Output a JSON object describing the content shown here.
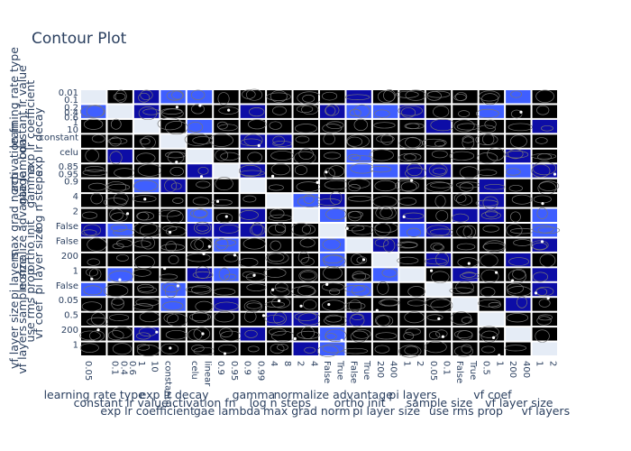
{
  "chart_data": {
    "type": "contour",
    "title": "Contour Plot",
    "subtitle": "",
    "parameters": [
      "learning rate type",
      "constant lr value",
      "exp lr coefficient",
      "exp lr decay",
      "activation fn",
      "gae lambda",
      "gamma",
      "log n steps",
      "max grad norm",
      "normalize advantage",
      "ortho init",
      "pi layer size",
      "pi layers",
      "sample size",
      "use rms prop",
      "vf coef",
      "vf layer size",
      "vf layers"
    ],
    "x_tick_labels": [
      [
        "0.05"
      ],
      [
        "0.1",
        "0.4",
        "0.6"
      ],
      [
        "1",
        "10"
      ],
      [
        "constant"
      ],
      [
        "celu",
        "linear"
      ],
      [
        "0.9",
        "0.95"
      ],
      [
        "0.9",
        "0.99"
      ],
      [
        "4",
        "8"
      ],
      [
        "2",
        "4"
      ],
      [
        "False",
        "True"
      ],
      [
        "False",
        "True"
      ],
      [
        "200",
        "400"
      ],
      [
        "1",
        "2"
      ],
      [
        "0.05",
        "0.1"
      ],
      [
        "False",
        "True"
      ],
      [
        "0.5",
        "1"
      ],
      [
        "200",
        "400"
      ],
      [
        "1",
        "2"
      ]
    ],
    "y_tick_labels": [
      [
        "0.01",
        "0.1"
      ],
      [
        "0.2",
        "0.4",
        "0.6"
      ],
      [
        "1",
        "10"
      ],
      [
        "constant"
      ],
      [
        "celu"
      ],
      [
        "0.85",
        "0.95"
      ],
      [
        "0.9"
      ],
      [
        "4"
      ],
      [
        "2"
      ],
      [
        "False"
      ],
      [
        "False"
      ],
      [
        "200"
      ],
      [
        "1"
      ],
      [
        "False"
      ],
      [
        "0.05"
      ],
      [
        "0.5"
      ],
      [
        "200"
      ],
      [
        "1"
      ]
    ],
    "colorscale": [
      "#000000",
      "#0d0da6",
      "#3f5fff"
    ],
    "grid": true,
    "legend": "none"
  }
}
